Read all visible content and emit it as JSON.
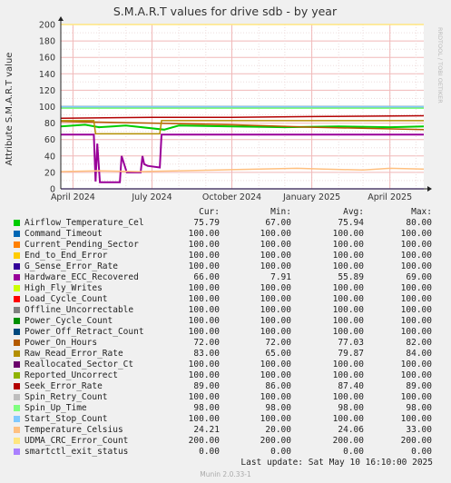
{
  "chart_data": {
    "type": "line",
    "title": "S.M.A.R.T values for drive sdb - by year",
    "ylabel": "Attribute S.M.A.R.T value",
    "ylim": [
      0,
      200
    ],
    "yticks": [
      0,
      20,
      40,
      60,
      80,
      100,
      120,
      140,
      160,
      180,
      200
    ],
    "xlim": [
      "2024-03-18",
      "2025-05-10"
    ],
    "xticks": [
      {
        "date": "2024-04-01",
        "label": "April 2024"
      },
      {
        "date": "2024-07-01",
        "label": "July 2024"
      },
      {
        "date": "2024-10-01",
        "label": "October 2024"
      },
      {
        "date": "2025-01-01",
        "label": "January 2025"
      },
      {
        "date": "2025-04-01",
        "label": "April 2025"
      }
    ],
    "grid": true,
    "watermark": "RRDTOOL / TOBI OETIKER",
    "series": [
      {
        "name": "Airflow_Temperature_Cel",
        "color": "#00cc00",
        "cur": "75.79",
        "min": "67.00",
        "avg": "75.94",
        "max": "80.00",
        "x": [
          "2024-03-18",
          "2024-04-15",
          "2024-05-01",
          "2024-06-01",
          "2024-07-15",
          "2024-08-01",
          "2024-10-01",
          "2024-12-01",
          "2025-02-01",
          "2025-04-01",
          "2025-05-10"
        ],
        "y": [
          76,
          78,
          75,
          77,
          72,
          77,
          76,
          75,
          76,
          75,
          76
        ]
      },
      {
        "name": "Command_Timeout",
        "color": "#0066b3",
        "cur": "100.00",
        "min": "100.00",
        "avg": "100.00",
        "max": "100.00",
        "x": [
          "2024-03-18",
          "2025-05-10"
        ],
        "y": [
          100,
          100
        ]
      },
      {
        "name": "Current_Pending_Sector",
        "color": "#ff8000",
        "cur": "100.00",
        "min": "100.00",
        "avg": "100.00",
        "max": "100.00",
        "x": [
          "2024-03-18",
          "2025-05-10"
        ],
        "y": [
          100,
          100
        ]
      },
      {
        "name": "End_to_End_Error",
        "color": "#ffcc00",
        "cur": "100.00",
        "min": "100.00",
        "avg": "100.00",
        "max": "100.00",
        "x": [
          "2024-03-18",
          "2025-05-10"
        ],
        "y": [
          100,
          100
        ]
      },
      {
        "name": "G_Sense_Error_Rate",
        "color": "#330099",
        "cur": "100.00",
        "min": "100.00",
        "avg": "100.00",
        "max": "100.00",
        "x": [
          "2024-03-18",
          "2025-05-10"
        ],
        "y": [
          100,
          100
        ]
      },
      {
        "name": "Hardware_ECC_Recovered",
        "color": "#990099",
        "cur": "66.00",
        "min": "7.91",
        "avg": "55.89",
        "max": "69.00",
        "x": [
          "2024-03-18",
          "2024-04-25",
          "2024-04-27",
          "2024-04-29",
          "2024-05-02",
          "2024-05-04",
          "2024-05-25",
          "2024-05-27",
          "2024-06-02",
          "2024-06-18",
          "2024-06-20",
          "2024-06-22",
          "2024-06-26",
          "2024-07-10",
          "2024-07-12",
          "2024-08-15",
          "2025-05-10"
        ],
        "y": [
          66,
          66,
          9,
          55,
          8,
          8,
          8,
          40,
          20,
          20,
          40,
          30,
          28,
          26,
          66,
          66,
          66
        ]
      },
      {
        "name": "High_Fly_Writes",
        "color": "#ccff00",
        "cur": "100.00",
        "min": "100.00",
        "avg": "100.00",
        "max": "100.00",
        "x": [
          "2024-03-18",
          "2025-05-10"
        ],
        "y": [
          100,
          100
        ]
      },
      {
        "name": "Load_Cycle_Count",
        "color": "#ff0000",
        "cur": "100.00",
        "min": "100.00",
        "avg": "100.00",
        "max": "100.00",
        "x": [
          "2024-03-18",
          "2025-05-10"
        ],
        "y": [
          100,
          100
        ]
      },
      {
        "name": "Offline_Uncorrectable",
        "color": "#808080",
        "cur": "100.00",
        "min": "100.00",
        "avg": "100.00",
        "max": "100.00",
        "x": [
          "2024-03-18",
          "2025-05-10"
        ],
        "y": [
          100,
          100
        ]
      },
      {
        "name": "Power_Cycle_Count",
        "color": "#008f00",
        "cur": "100.00",
        "min": "100.00",
        "avg": "100.00",
        "max": "100.00",
        "x": [
          "2024-03-18",
          "2025-05-10"
        ],
        "y": [
          100,
          100
        ]
      },
      {
        "name": "Power_Off_Retract_Count",
        "color": "#00487d",
        "cur": "100.00",
        "min": "100.00",
        "avg": "100.00",
        "max": "100.00",
        "x": [
          "2024-03-18",
          "2025-05-10"
        ],
        "y": [
          100,
          100
        ]
      },
      {
        "name": "Power_On_Hours",
        "color": "#b35a00",
        "cur": "72.00",
        "min": "72.00",
        "avg": "77.03",
        "max": "82.00",
        "x": [
          "2024-03-18",
          "2024-07-01",
          "2024-10-01",
          "2025-01-01",
          "2025-05-10"
        ],
        "y": [
          82,
          80,
          78,
          75,
          72
        ]
      },
      {
        "name": "Raw_Read_Error_Rate",
        "color": "#b38f00",
        "cur": "83.00",
        "min": "65.00",
        "avg": "79.87",
        "max": "84.00",
        "x": [
          "2024-03-18",
          "2024-04-25",
          "2024-04-27",
          "2024-07-10",
          "2024-07-12",
          "2025-05-10"
        ],
        "y": [
          83,
          83,
          67,
          67,
          83,
          83
        ]
      },
      {
        "name": "Reallocated_Sector_Ct",
        "color": "#6b006b",
        "cur": "100.00",
        "min": "100.00",
        "avg": "100.00",
        "max": "100.00",
        "x": [
          "2024-03-18",
          "2025-05-10"
        ],
        "y": [
          100,
          100
        ]
      },
      {
        "name": "Reported_Uncorrect",
        "color": "#8fb300",
        "cur": "100.00",
        "min": "100.00",
        "avg": "100.00",
        "max": "100.00",
        "x": [
          "2024-03-18",
          "2025-05-10"
        ],
        "y": [
          100,
          100
        ]
      },
      {
        "name": "Seek_Error_Rate",
        "color": "#b30000",
        "cur": "89.00",
        "min": "86.00",
        "avg": "87.40",
        "max": "89.00",
        "x": [
          "2024-03-18",
          "2024-07-01",
          "2024-10-01",
          "2025-01-01",
          "2025-05-10"
        ],
        "y": [
          86,
          87,
          87,
          88,
          89
        ]
      },
      {
        "name": "Spin_Retry_Count",
        "color": "#bebebe",
        "cur": "100.00",
        "min": "100.00",
        "avg": "100.00",
        "max": "100.00",
        "x": [
          "2024-03-18",
          "2025-05-10"
        ],
        "y": [
          100,
          100
        ]
      },
      {
        "name": "Spin_Up_Time",
        "color": "#80ff80",
        "cur": "98.00",
        "min": "98.00",
        "avg": "98.00",
        "max": "98.00",
        "x": [
          "2024-03-18",
          "2025-05-10"
        ],
        "y": [
          98,
          98
        ]
      },
      {
        "name": "Start_Stop_Count",
        "color": "#80c9ff",
        "cur": "100.00",
        "min": "100.00",
        "avg": "100.00",
        "max": "100.00",
        "x": [
          "2024-03-18",
          "2025-05-10"
        ],
        "y": [
          100,
          100
        ]
      },
      {
        "name": "Temperature_Celsius",
        "color": "#ffc080",
        "cur": "24.21",
        "min": "20.00",
        "avg": "24.06",
        "max": "33.00",
        "x": [
          "2024-03-18",
          "2024-05-01",
          "2024-06-15",
          "2024-08-01",
          "2024-09-15",
          "2024-11-01",
          "2024-12-15",
          "2025-01-15",
          "2025-03-01",
          "2025-04-01",
          "2025-05-10"
        ],
        "y": [
          21,
          22,
          21,
          22,
          23,
          24,
          25,
          24,
          23,
          25,
          24
        ]
      },
      {
        "name": "UDMA_CRC_Error_Count",
        "color": "#ffe680",
        "cur": "200.00",
        "min": "200.00",
        "avg": "200.00",
        "max": "200.00",
        "x": [
          "2024-03-18",
          "2025-05-10"
        ],
        "y": [
          200,
          200
        ]
      },
      {
        "name": "smartctl_exit_status",
        "color": "#aa80ff",
        "cur": "0.00",
        "min": "0.00",
        "avg": "0.00",
        "max": "0.00",
        "x": [
          "2024-03-18",
          "2025-05-10"
        ],
        "y": [
          0,
          0
        ]
      }
    ]
  },
  "legend_headers": {
    "cur": "Cur:",
    "min": "Min:",
    "avg": "Avg:",
    "max": "Max:"
  },
  "footer": {
    "last_update": "Last update:  Sat May 10 16:10:00 2025",
    "munin": "Munin 2.0.33-1"
  }
}
